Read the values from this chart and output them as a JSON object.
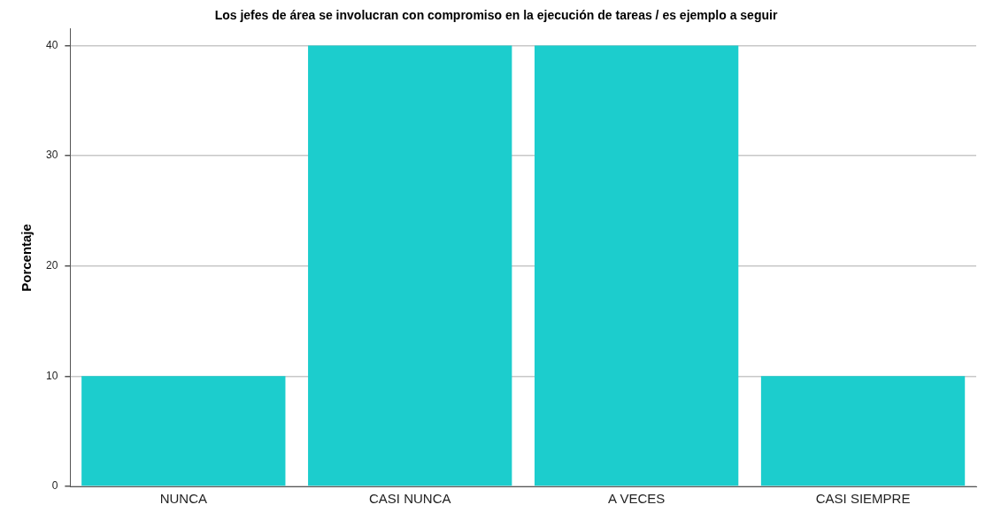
{
  "chart_data": {
    "type": "bar",
    "title": "Los jefes de área se involucran con compromiso en la ejecución de tareas / es ejemplo a seguir",
    "ylabel": "Porcentaje",
    "categories": [
      "NUNCA",
      "CASI NUNCA",
      "A VECES",
      "CASI SIEMPRE"
    ],
    "values": [
      10,
      40,
      40,
      10
    ],
    "color": "#1ccdcd",
    "ylim": [
      0,
      41.5
    ],
    "yticks": [
      0,
      10,
      20,
      30,
      40
    ],
    "grid": "y",
    "legend": false
  }
}
